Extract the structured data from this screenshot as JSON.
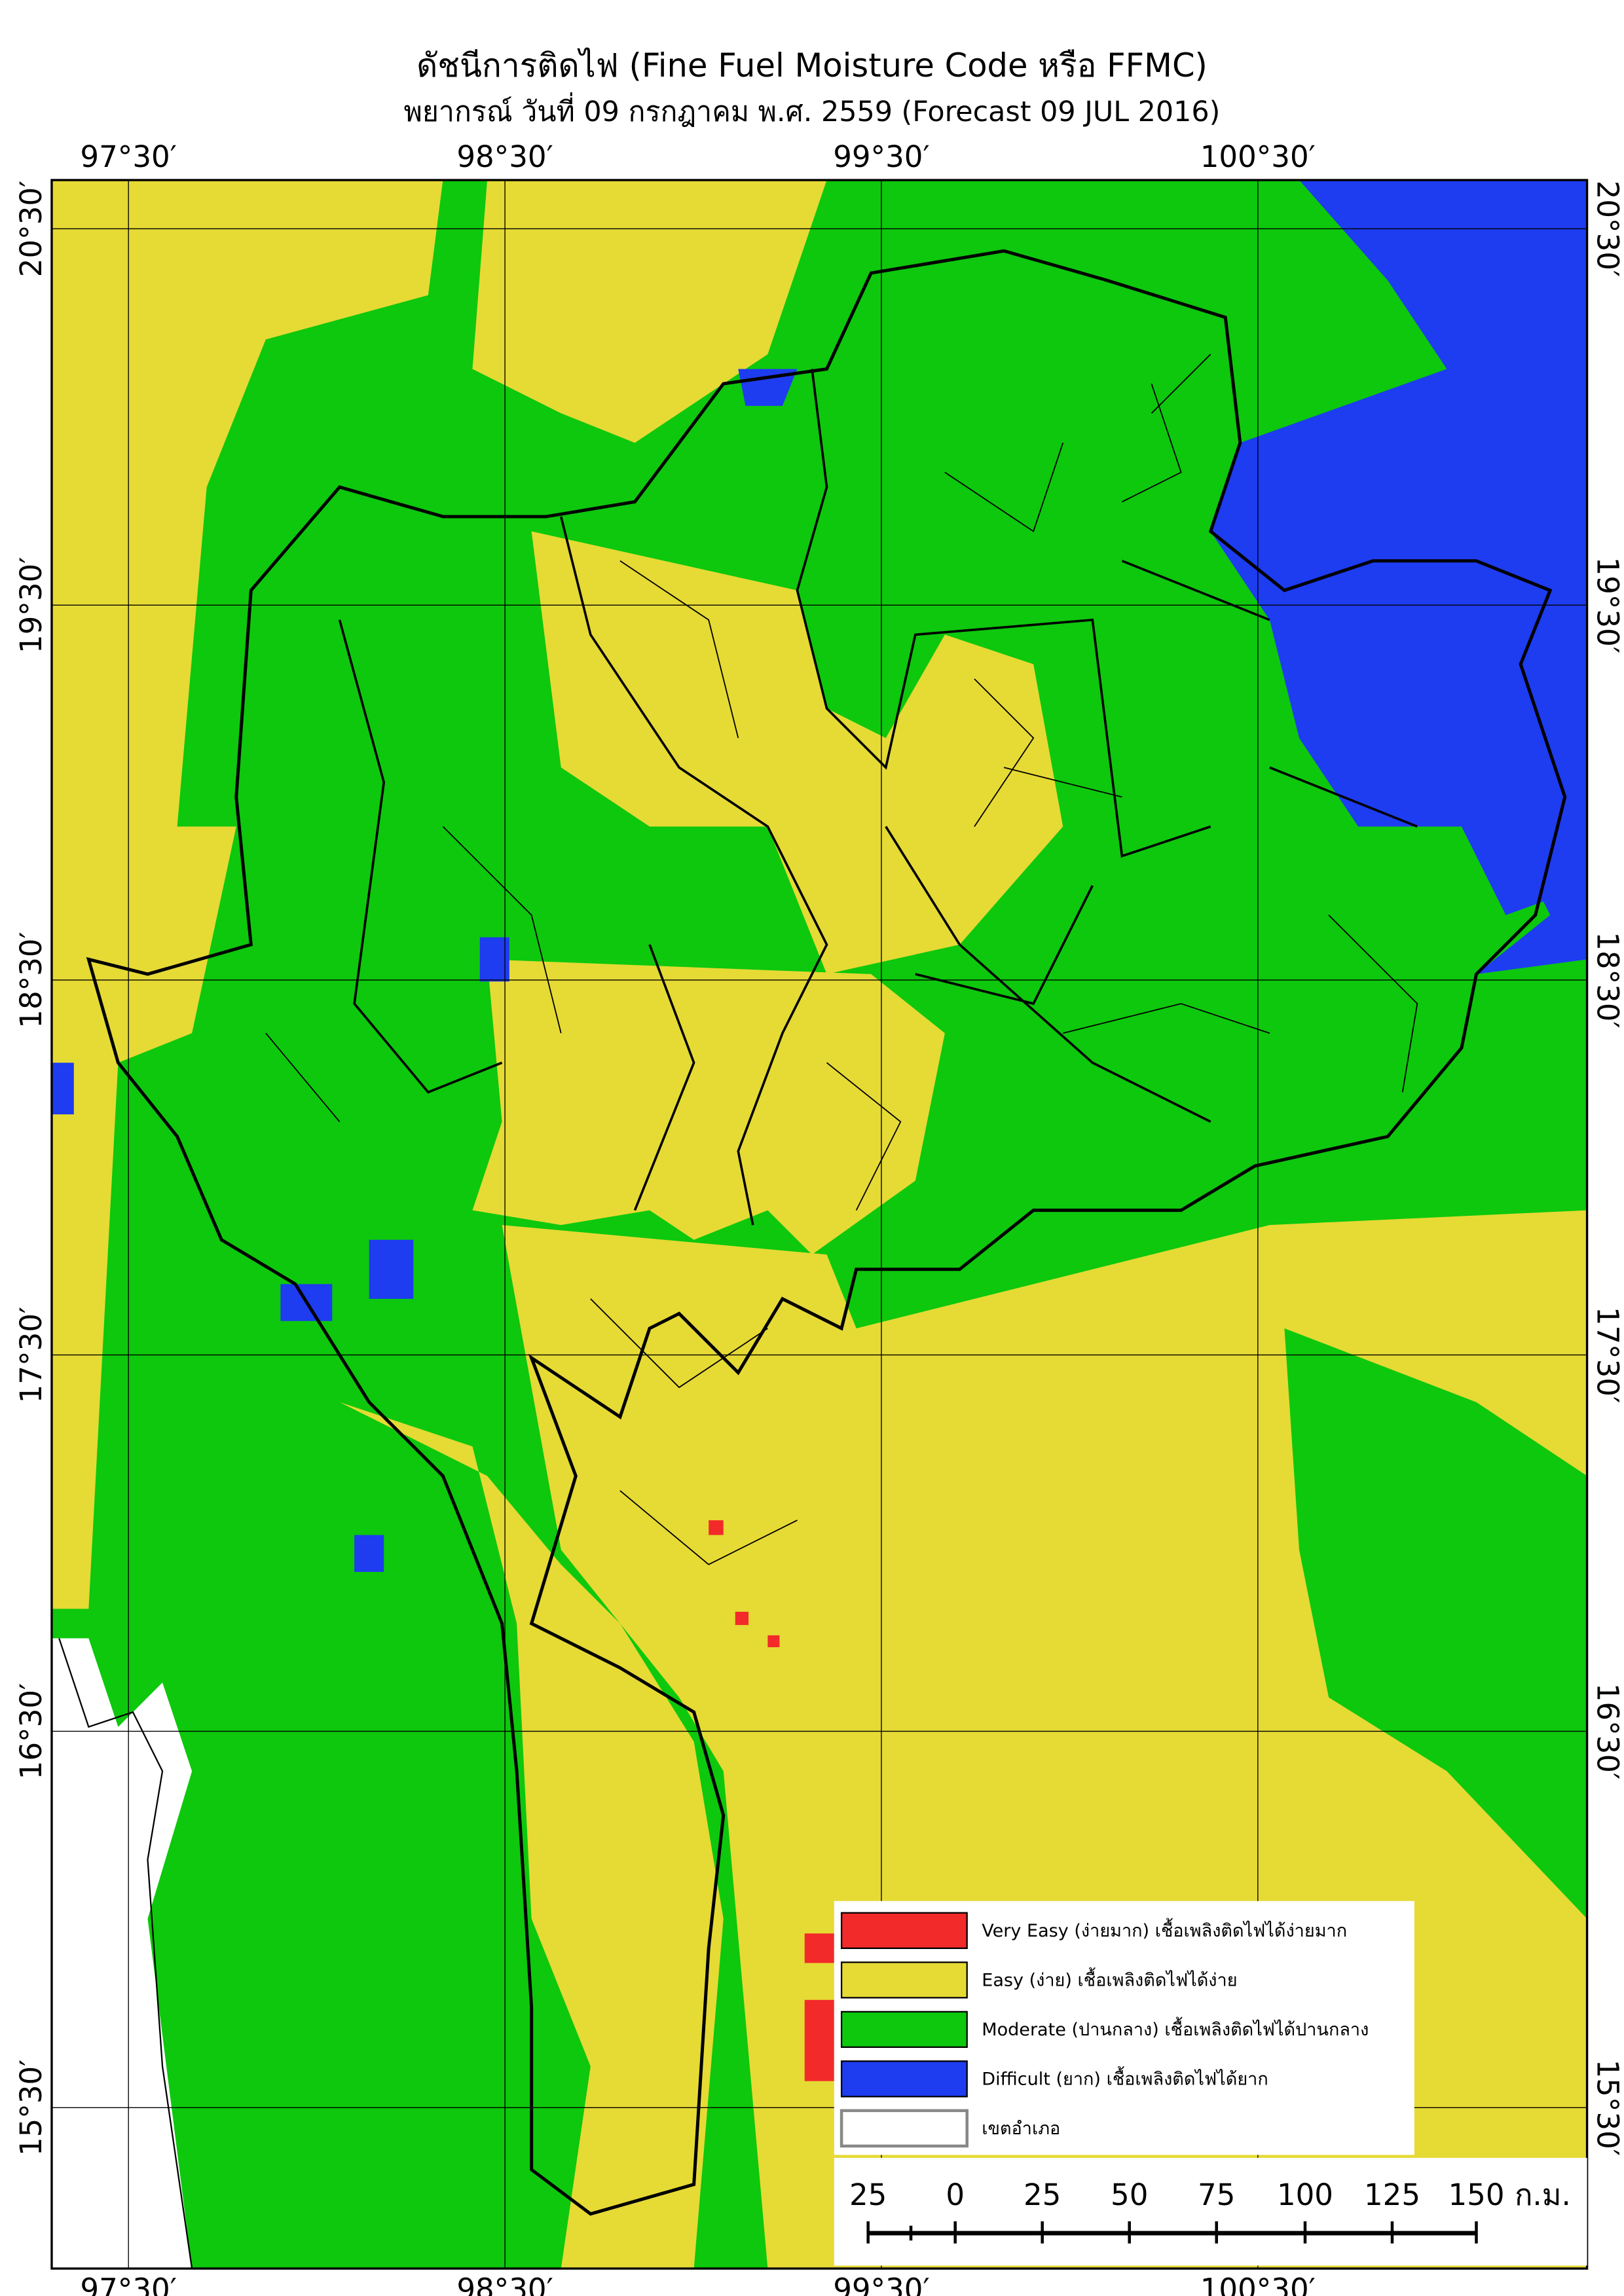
{
  "header": {
    "title": "ดัชนีการติดไฟ (Fine Fuel Moisture Code หรือ FFMC)",
    "subtitle": "พยากรณ์ วันที่ 09 กรกฎาคม พ.ศ. 2559 (Forecast 09 JUL 2016)"
  },
  "longitude_labels": [
    "97°30′",
    "98°30′",
    "99°30′",
    "100°30′"
  ],
  "latitude_labels": [
    "20°30′",
    "19°30′",
    "18°30′",
    "17°30′",
    "16°30′",
    "15°30′"
  ],
  "legend": [
    {
      "label": "Very Easy (ง่ายมาก) เชื้อเพลิงติดไฟได้ง่ายมาก",
      "color": "#f22a2a"
    },
    {
      "label": "Easy (ง่าย) เชื้อเพลิงติดไฟได้ง่าย",
      "color": "#e6da35"
    },
    {
      "label": "Moderate (ปานกลาง) เชื้อเพลิงติดไฟได้ปานกลาง",
      "color": "#0dc80d"
    },
    {
      "label": "Difficult (ยาก) เชื้อเพลิงติดไฟได้ยาก",
      "color": "#1e3cf0"
    },
    {
      "label": "เขตอำเภอ",
      "color": "#ffffff"
    }
  ],
  "scale_bar": {
    "labels": [
      "25",
      "0",
      "25",
      "50",
      "75",
      "100",
      "125",
      "150"
    ],
    "unit": "ก.ม."
  }
}
